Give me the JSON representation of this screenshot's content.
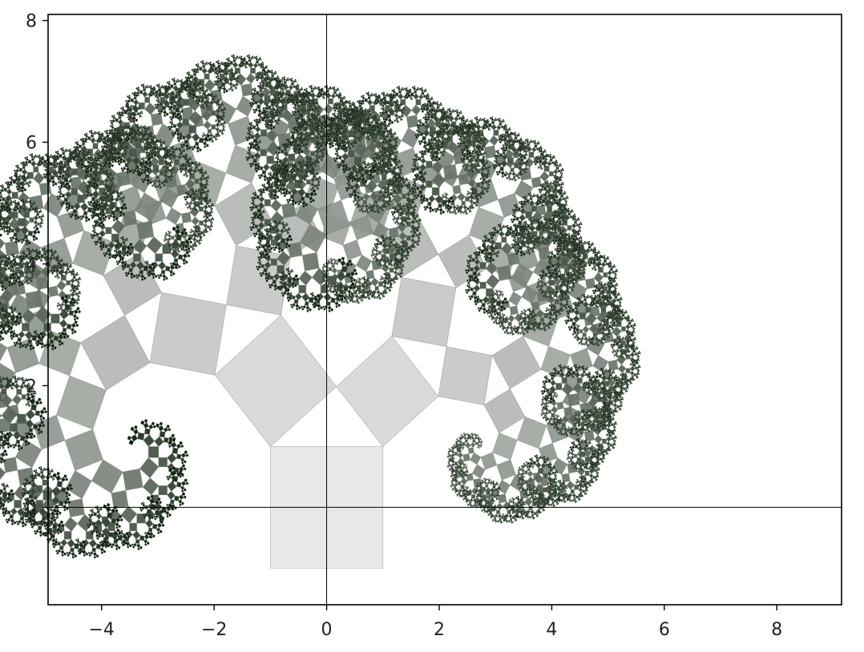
{
  "chart_data": {
    "type": "scatter",
    "title": "",
    "xlabel": "",
    "ylabel": "",
    "xlim": [
      -4.95,
      9.15
    ],
    "ylim": [
      -1.6,
      8.1
    ],
    "x_ticks": [
      -4,
      -2,
      0,
      2,
      4,
      6,
      8
    ],
    "y_ticks": [
      0,
      2,
      4,
      6,
      8
    ],
    "x_tick_labels": [
      "−4",
      "−2",
      "0",
      "2",
      "4",
      "6",
      "8"
    ],
    "y_tick_labels": [
      "0",
      "2",
      "4",
      "6",
      "8"
    ],
    "grid": false,
    "legend": "none",
    "reference_lines": {
      "x": 0,
      "y": 0
    },
    "fractal": {
      "kind": "Pythagoras tree",
      "trunk": {
        "x_range": [
          -1,
          1
        ],
        "y_range": [
          -1,
          1
        ],
        "side": 2
      },
      "branch_angle_deg": 40,
      "depth": 13,
      "colors": {
        "root": "#e4e4e4",
        "leaf": "#051505"
      }
    }
  }
}
